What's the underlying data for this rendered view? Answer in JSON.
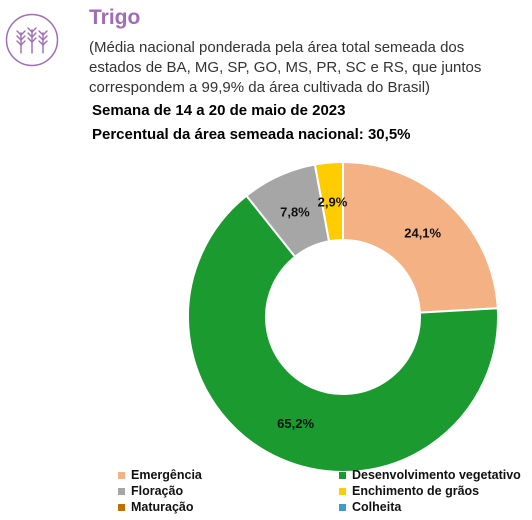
{
  "header": {
    "title": "Trigo",
    "subtitle": "(Média nacional ponderada pela área total semeada dos estados de BA, MG, SP, GO, MS, PR, SC e RS, que juntos correspondem a 99,9% da área cultivada do Brasil)",
    "week": "Semana de 14 a 20 de maio de 2023",
    "percent_line": "Percentual da área semeada nacional: 30,5%",
    "emblem_icon": "wheat-icon",
    "emblem_color": "#a06cb4"
  },
  "chart_data": {
    "type": "pie",
    "donut": true,
    "legend_position": "bottom",
    "categories": [
      "Emergência",
      "Desenvolvimento vegetativo",
      "Floração",
      "Enchimento de grãos",
      "Maturação",
      "Colheita"
    ],
    "values": [
      24.1,
      65.2,
      7.8,
      2.9,
      0,
      0
    ],
    "data_labels": [
      "24,1%",
      "65,2%",
      "7,8%",
      "2,9%",
      "",
      ""
    ],
    "colors": [
      "#f4b183",
      "#1a9a2f",
      "#a6a6a6",
      "#ffcc00",
      "#c07000",
      "#3f9bc9"
    ]
  }
}
